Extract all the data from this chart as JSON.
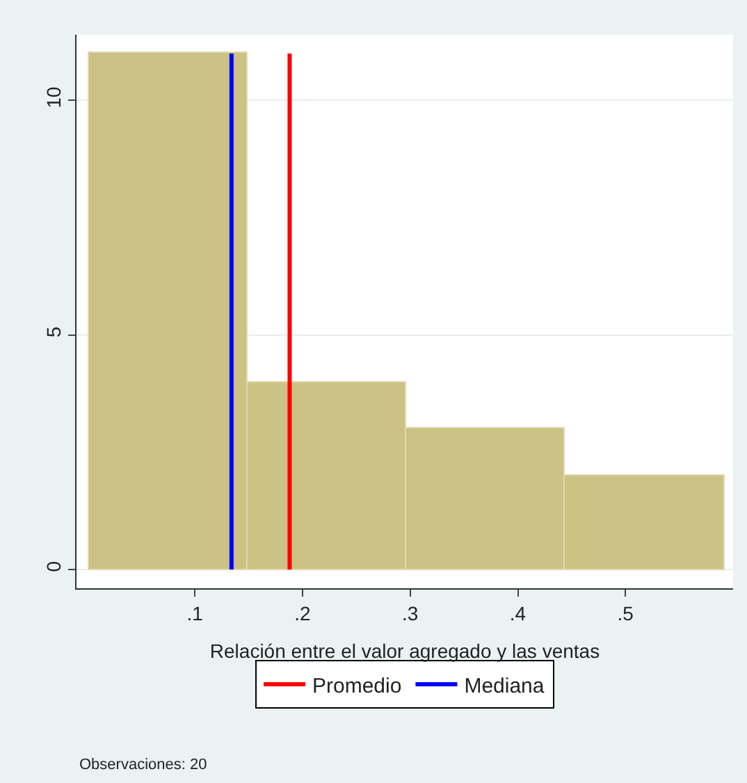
{
  "chart_data": {
    "type": "histogram",
    "xlabel": "Relación entre el valor agregado y las ventas",
    "bins": [
      0.002,
      0.149,
      0.296,
      0.444,
      0.592
    ],
    "values": [
      11,
      4,
      3,
      2
    ],
    "color": "#ccc284",
    "xlim": [
      -0.01,
      0.6
    ],
    "xticks": [
      {
        "value": 0.1,
        "label": ".1"
      },
      {
        "value": 0.2,
        "label": ".2"
      },
      {
        "value": 0.3,
        "label": ".3"
      },
      {
        "value": 0.4,
        "label": ".4"
      },
      {
        "value": 0.5,
        "label": ".5"
      }
    ],
    "ylim": [
      -0.4,
      11.4
    ],
    "yticks": [
      0,
      5,
      10
    ],
    "grid": "y",
    "legend": "bottom",
    "ref_lines": [
      {
        "axis": "x",
        "value": 0.188,
        "label": "Promedio",
        "color": "#ff0000"
      },
      {
        "axis": "x",
        "value": 0.134,
        "label": "Mediana",
        "color": "#0000ff"
      }
    ],
    "annotations": [
      "Observaciones: 20"
    ]
  }
}
